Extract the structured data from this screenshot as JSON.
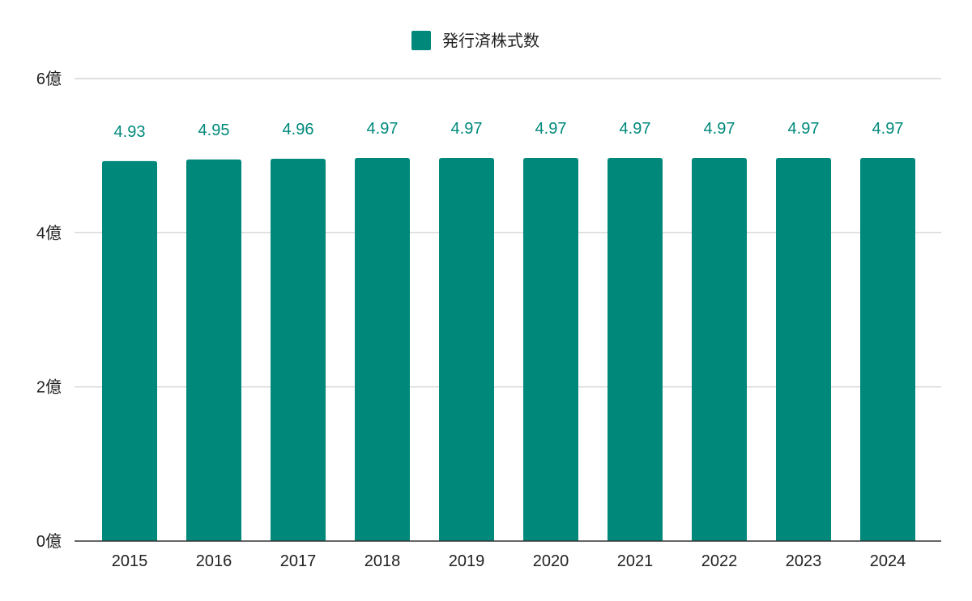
{
  "chart_data": {
    "type": "bar",
    "categories": [
      "2015",
      "2016",
      "2017",
      "2018",
      "2019",
      "2020",
      "2021",
      "2022",
      "2023",
      "2024"
    ],
    "series": [
      {
        "name": "発行済株式数",
        "values": [
          4.93,
          4.95,
          4.96,
          4.97,
          4.97,
          4.97,
          4.97,
          4.97,
          4.97,
          4.97
        ],
        "data_labels": [
          "4.93",
          "4.95",
          "4.96",
          "4.97",
          "4.97",
          "4.97",
          "4.97",
          "4.97",
          "4.97",
          "4.97"
        ],
        "color": "#00897b"
      }
    ],
    "ylim": [
      0,
      6
    ],
    "y_ticks": [
      0,
      2,
      4,
      6
    ],
    "y_tick_labels": [
      "0億",
      "2億",
      "4億",
      "6億"
    ],
    "grid": true,
    "legend": "top-center",
    "title": "",
    "xlabel": "",
    "ylabel": ""
  },
  "colors": {
    "bar": "#00897b",
    "data_label": "#00897b",
    "grid": "#cccccc",
    "axis": "#333333",
    "text": "#222222"
  }
}
